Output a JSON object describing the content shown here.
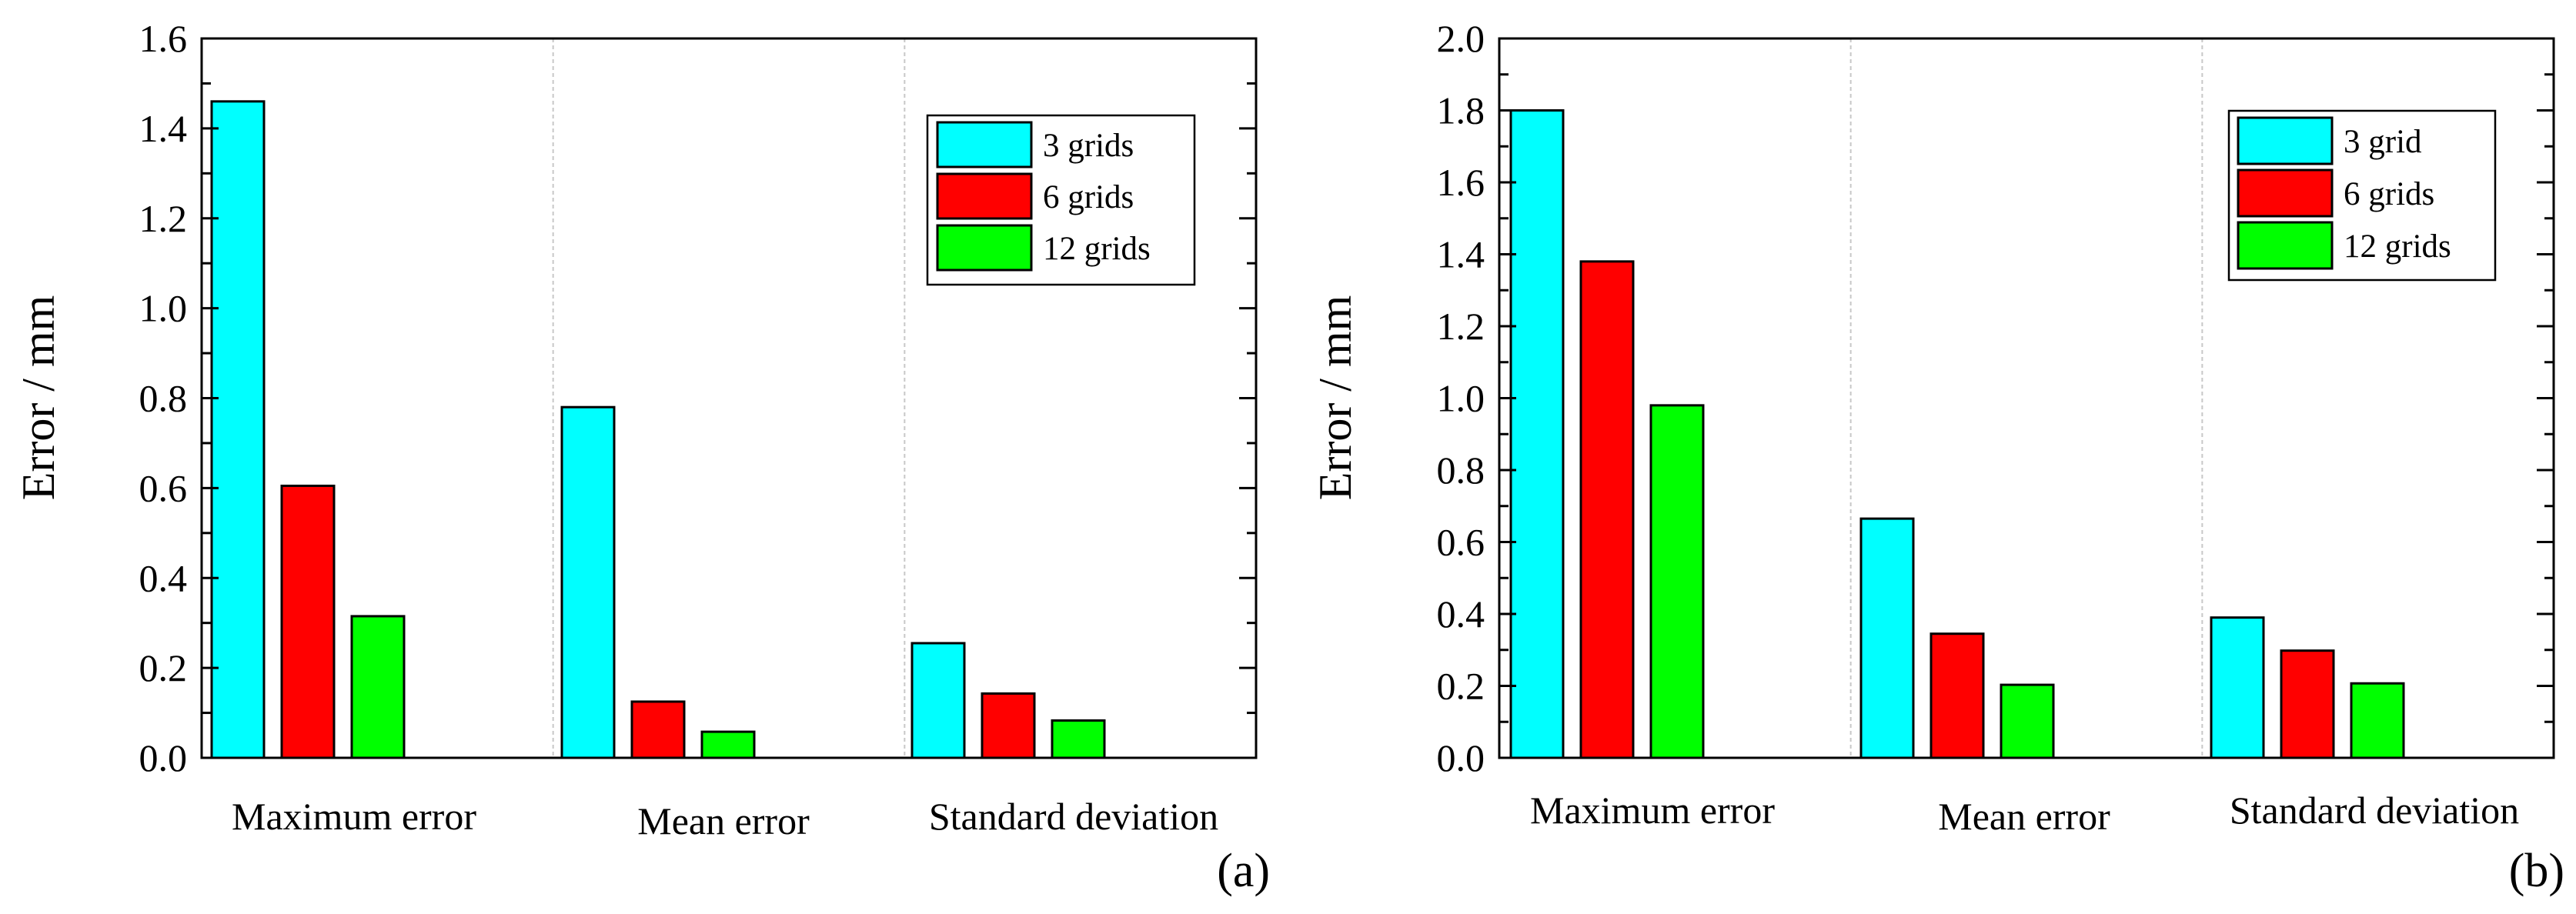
{
  "chart_data": [
    {
      "type": "bar",
      "panel_label": "(a)",
      "categories": [
        "Maximum error",
        "Mean error",
        "Standard deviation"
      ],
      "series": [
        {
          "name": "3 grids",
          "color": "#00ffff",
          "values": [
            1.46,
            0.78,
            0.255
          ]
        },
        {
          "name": "6 grids",
          "color": "#ff0000",
          "values": [
            0.605,
            0.125,
            0.143
          ]
        },
        {
          "name": "12 grids",
          "color": "#00ff00",
          "values": [
            0.315,
            0.058,
            0.083
          ]
        }
      ],
      "ylabel": "Error / mm",
      "xlabel": "",
      "ylim": [
        0,
        1.6
      ],
      "yticks": [
        "0.0",
        "0.2",
        "0.4",
        "0.6",
        "0.8",
        "1.0",
        "1.2",
        "1.4",
        "1.6"
      ],
      "legend_position": "top-right",
      "grid": "vertical dashed separators between categories"
    },
    {
      "type": "bar",
      "panel_label": "(b)",
      "categories": [
        "Maximum error",
        "Mean error",
        "Standard deviation"
      ],
      "series": [
        {
          "name": "3 grid",
          "color": "#00ffff",
          "values": [
            1.8,
            0.665,
            0.39
          ]
        },
        {
          "name": "6 grids",
          "color": "#ff0000",
          "values": [
            1.38,
            0.345,
            0.298
          ]
        },
        {
          "name": "12 grids",
          "color": "#00ff00",
          "values": [
            0.98,
            0.203,
            0.207
          ]
        }
      ],
      "ylabel": "Error / mm",
      "xlabel": "",
      "ylim": [
        0,
        2.0
      ],
      "yticks": [
        "0.0",
        "0.2",
        "0.4",
        "0.6",
        "0.8",
        "1.0",
        "1.2",
        "1.4",
        "1.6",
        "1.8",
        "2.0"
      ],
      "legend_position": "top-right",
      "grid": "vertical dashed separators between categories"
    }
  ]
}
